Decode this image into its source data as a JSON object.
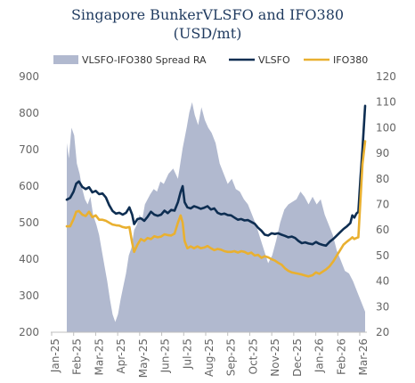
{
  "chart_data": {
    "type": "area+line",
    "title_line1": "Singapore BunkerVLSFO and IFO380",
    "title_line2": "(USD/mt)",
    "x_start": "2025-01-01",
    "x_end": "2026-03-20",
    "x_ticks": [
      "Jan-25",
      "Feb-25",
      "Mar-25",
      "Apr-25",
      "May-25",
      "Jun-25",
      "Jul-25",
      "Aug-25",
      "Sep-25",
      "Oct-25",
      "Nov-25",
      "Dec-25",
      "Jan-26",
      "Feb-26",
      "Mar-26"
    ],
    "y_left": {
      "ticks": [
        "200",
        "300",
        "400",
        "500",
        "600",
        "700",
        "800",
        "900"
      ],
      "lim": [
        200,
        900
      ]
    },
    "y_right": {
      "ticks": [
        "20",
        "30",
        "40",
        "50",
        "60",
        "70",
        "80",
        "90",
        "100",
        "110",
        "120"
      ],
      "lim": [
        20,
        120
      ]
    },
    "colors": {
      "spread": "#b1b9cf",
      "vlsfo": "#0e2e52",
      "ifo380": "#e9b030"
    },
    "series": [
      {
        "name": "VLSFO-IFO380 Spread RA",
        "axis": "right",
        "kind": "area",
        "points": [
          [
            "2025-01-01",
            94
          ],
          [
            "2025-01-04",
            88
          ],
          [
            "2025-01-08",
            100
          ],
          [
            "2025-01-12",
            97
          ],
          [
            "2025-01-16",
            86
          ],
          [
            "2025-01-20",
            82
          ],
          [
            "2025-01-24",
            76
          ],
          [
            "2025-01-28",
            72
          ],
          [
            "2025-02-01",
            70
          ],
          [
            "2025-02-05",
            73
          ],
          [
            "2025-02-09",
            66
          ],
          [
            "2025-02-14",
            62
          ],
          [
            "2025-02-18",
            58
          ],
          [
            "2025-02-22",
            52
          ],
          [
            "2025-02-26",
            46
          ],
          [
            "2025-03-02",
            40
          ],
          [
            "2025-03-06",
            33
          ],
          [
            "2025-03-10",
            27
          ],
          [
            "2025-03-14",
            24
          ],
          [
            "2025-03-18",
            27
          ],
          [
            "2025-03-22",
            33
          ],
          [
            "2025-03-26",
            38
          ],
          [
            "2025-03-30",
            43
          ],
          [
            "2025-04-03",
            50
          ],
          [
            "2025-04-07",
            53
          ],
          [
            "2025-04-11",
            60
          ],
          [
            "2025-04-15",
            62
          ],
          [
            "2025-04-19",
            66
          ],
          [
            "2025-04-23",
            64
          ],
          [
            "2025-04-27",
            70
          ],
          [
            "2025-05-01",
            72
          ],
          [
            "2025-05-05",
            74
          ],
          [
            "2025-05-10",
            76
          ],
          [
            "2025-05-15",
            75
          ],
          [
            "2025-05-20",
            79
          ],
          [
            "2025-05-25",
            78
          ],
          [
            "2025-06-01",
            82
          ],
          [
            "2025-06-08",
            84
          ],
          [
            "2025-06-15",
            80
          ],
          [
            "2025-06-22",
            92
          ],
          [
            "2025-06-28",
            100
          ],
          [
            "2025-07-02",
            106
          ],
          [
            "2025-07-06",
            110
          ],
          [
            "2025-07-10",
            105
          ],
          [
            "2025-07-15",
            101
          ],
          [
            "2025-07-20",
            108
          ],
          [
            "2025-07-25",
            103
          ],
          [
            "2025-07-30",
            100
          ],
          [
            "2025-08-04",
            98
          ],
          [
            "2025-08-10",
            94
          ],
          [
            "2025-08-16",
            86
          ],
          [
            "2025-08-22",
            82
          ],
          [
            "2025-08-28",
            78
          ],
          [
            "2025-09-03",
            80
          ],
          [
            "2025-09-09",
            76
          ],
          [
            "2025-09-15",
            75
          ],
          [
            "2025-09-21",
            72
          ],
          [
            "2025-09-27",
            70
          ],
          [
            "2025-10-03",
            66
          ],
          [
            "2025-10-09",
            62
          ],
          [
            "2025-10-15",
            57
          ],
          [
            "2025-10-21",
            52
          ],
          [
            "2025-10-27",
            47
          ],
          [
            "2025-11-02",
            50
          ],
          [
            "2025-11-08",
            56
          ],
          [
            "2025-11-14",
            63
          ],
          [
            "2025-11-20",
            68
          ],
          [
            "2025-11-26",
            70
          ],
          [
            "2025-12-02",
            71
          ],
          [
            "2025-12-08",
            72
          ],
          [
            "2025-12-14",
            75
          ],
          [
            "2025-12-20",
            73
          ],
          [
            "2025-12-26",
            70
          ],
          [
            "2026-01-01",
            73
          ],
          [
            "2026-01-07",
            70
          ],
          [
            "2026-01-13",
            72
          ],
          [
            "2026-01-19",
            66
          ],
          [
            "2026-01-25",
            62
          ],
          [
            "2026-01-31",
            58
          ],
          [
            "2026-02-06",
            52
          ],
          [
            "2026-02-12",
            48
          ],
          [
            "2026-02-18",
            44
          ],
          [
            "2026-02-24",
            43
          ],
          [
            "2026-03-02",
            40
          ],
          [
            "2026-03-08",
            36
          ],
          [
            "2026-03-14",
            32
          ],
          [
            "2026-03-20",
            28
          ]
        ]
      },
      {
        "name": "VLSFO",
        "axis": "left",
        "kind": "line",
        "points": [
          [
            "2025-01-01",
            563
          ],
          [
            "2025-01-06",
            568
          ],
          [
            "2025-01-11",
            585
          ],
          [
            "2025-01-15",
            607
          ],
          [
            "2025-01-19",
            613
          ],
          [
            "2025-01-24",
            598
          ],
          [
            "2025-01-29",
            592
          ],
          [
            "2025-02-03",
            597
          ],
          [
            "2025-02-08",
            583
          ],
          [
            "2025-02-13",
            587
          ],
          [
            "2025-02-18",
            578
          ],
          [
            "2025-02-23",
            580
          ],
          [
            "2025-02-28",
            569
          ],
          [
            "2025-03-05",
            548
          ],
          [
            "2025-03-10",
            532
          ],
          [
            "2025-03-15",
            525
          ],
          [
            "2025-03-20",
            527
          ],
          [
            "2025-03-25",
            522
          ],
          [
            "2025-03-30",
            527
          ],
          [
            "2025-04-04",
            542
          ],
          [
            "2025-04-08",
            522
          ],
          [
            "2025-04-11",
            496
          ],
          [
            "2025-04-16",
            510
          ],
          [
            "2025-04-21",
            512
          ],
          [
            "2025-04-26",
            505
          ],
          [
            "2025-05-01",
            516
          ],
          [
            "2025-05-06",
            530
          ],
          [
            "2025-05-11",
            522
          ],
          [
            "2025-05-16",
            519
          ],
          [
            "2025-05-21",
            522
          ],
          [
            "2025-05-26",
            533
          ],
          [
            "2025-05-31",
            526
          ],
          [
            "2025-06-05",
            535
          ],
          [
            "2025-06-10",
            533
          ],
          [
            "2025-06-15",
            556
          ],
          [
            "2025-06-19",
            584
          ],
          [
            "2025-06-22",
            600
          ],
          [
            "2025-06-25",
            556
          ],
          [
            "2025-06-29",
            542
          ],
          [
            "2025-07-04",
            539
          ],
          [
            "2025-07-09",
            545
          ],
          [
            "2025-07-14",
            542
          ],
          [
            "2025-07-19",
            538
          ],
          [
            "2025-07-24",
            541
          ],
          [
            "2025-07-29",
            545
          ],
          [
            "2025-08-03",
            536
          ],
          [
            "2025-08-08",
            539
          ],
          [
            "2025-08-13",
            527
          ],
          [
            "2025-08-18",
            523
          ],
          [
            "2025-08-23",
            525
          ],
          [
            "2025-08-28",
            521
          ],
          [
            "2025-09-02",
            520
          ],
          [
            "2025-09-07",
            514
          ],
          [
            "2025-09-12",
            508
          ],
          [
            "2025-09-17",
            510
          ],
          [
            "2025-09-22",
            506
          ],
          [
            "2025-09-27",
            507
          ],
          [
            "2025-10-02",
            502
          ],
          [
            "2025-10-07",
            497
          ],
          [
            "2025-10-12",
            486
          ],
          [
            "2025-10-17",
            478
          ],
          [
            "2025-10-22",
            467
          ],
          [
            "2025-10-27",
            465
          ],
          [
            "2025-11-01",
            471
          ],
          [
            "2025-11-06",
            469
          ],
          [
            "2025-11-11",
            471
          ],
          [
            "2025-11-16",
            467
          ],
          [
            "2025-11-21",
            464
          ],
          [
            "2025-11-26",
            460
          ],
          [
            "2025-12-01",
            462
          ],
          [
            "2025-12-06",
            458
          ],
          [
            "2025-12-11",
            450
          ],
          [
            "2025-12-16",
            444
          ],
          [
            "2025-12-21",
            446
          ],
          [
            "2025-12-26",
            443
          ],
          [
            "2026-01-01",
            441
          ],
          [
            "2026-01-06",
            447
          ],
          [
            "2026-01-11",
            442
          ],
          [
            "2026-01-16",
            439
          ],
          [
            "2026-01-21",
            437
          ],
          [
            "2026-01-26",
            447
          ],
          [
            "2026-02-01",
            456
          ],
          [
            "2026-02-06",
            465
          ],
          [
            "2026-02-11",
            474
          ],
          [
            "2026-02-16",
            483
          ],
          [
            "2026-02-21",
            490
          ],
          [
            "2026-02-26",
            499
          ],
          [
            "2026-03-01",
            520
          ],
          [
            "2026-03-04",
            514
          ],
          [
            "2026-03-07",
            525
          ],
          [
            "2026-03-10",
            530
          ],
          [
            "2026-03-13",
            620
          ],
          [
            "2026-03-16",
            700
          ],
          [
            "2026-03-20",
            820
          ]
        ]
      },
      {
        "name": "IFO380",
        "axis": "left",
        "kind": "line",
        "points": [
          [
            "2025-01-01",
            490
          ],
          [
            "2025-01-06",
            490
          ],
          [
            "2025-01-11",
            510
          ],
          [
            "2025-01-15",
            530
          ],
          [
            "2025-01-19",
            532
          ],
          [
            "2025-01-24",
            522
          ],
          [
            "2025-01-29",
            518
          ],
          [
            "2025-02-03",
            530
          ],
          [
            "2025-02-08",
            515
          ],
          [
            "2025-02-13",
            520
          ],
          [
            "2025-02-18",
            508
          ],
          [
            "2025-02-23",
            508
          ],
          [
            "2025-02-28",
            505
          ],
          [
            "2025-03-05",
            500
          ],
          [
            "2025-03-10",
            495
          ],
          [
            "2025-03-15",
            493
          ],
          [
            "2025-03-20",
            492
          ],
          [
            "2025-03-25",
            488
          ],
          [
            "2025-03-30",
            486
          ],
          [
            "2025-04-04",
            488
          ],
          [
            "2025-04-08",
            445
          ],
          [
            "2025-04-11",
            420
          ],
          [
            "2025-04-16",
            440
          ],
          [
            "2025-04-21",
            455
          ],
          [
            "2025-04-26",
            450
          ],
          [
            "2025-05-01",
            458
          ],
          [
            "2025-05-06",
            455
          ],
          [
            "2025-05-11",
            463
          ],
          [
            "2025-05-16",
            460
          ],
          [
            "2025-05-21",
            462
          ],
          [
            "2025-05-26",
            468
          ],
          [
            "2025-05-31",
            466
          ],
          [
            "2025-06-05",
            465
          ],
          [
            "2025-06-10",
            470
          ],
          [
            "2025-06-15",
            500
          ],
          [
            "2025-06-19",
            520
          ],
          [
            "2025-06-22",
            500
          ],
          [
            "2025-06-25",
            450
          ],
          [
            "2025-06-29",
            430
          ],
          [
            "2025-07-04",
            435
          ],
          [
            "2025-07-09",
            430
          ],
          [
            "2025-07-14",
            435
          ],
          [
            "2025-07-19",
            430
          ],
          [
            "2025-07-24",
            432
          ],
          [
            "2025-07-29",
            436
          ],
          [
            "2025-08-03",
            430
          ],
          [
            "2025-08-08",
            425
          ],
          [
            "2025-08-13",
            428
          ],
          [
            "2025-08-18",
            426
          ],
          [
            "2025-08-23",
            422
          ],
          [
            "2025-08-28",
            420
          ],
          [
            "2025-09-02",
            420
          ],
          [
            "2025-09-07",
            422
          ],
          [
            "2025-09-12",
            418
          ],
          [
            "2025-09-17",
            422
          ],
          [
            "2025-09-22",
            420
          ],
          [
            "2025-09-27",
            415
          ],
          [
            "2025-10-02",
            418
          ],
          [
            "2025-10-07",
            410
          ],
          [
            "2025-10-12",
            412
          ],
          [
            "2025-10-17",
            404
          ],
          [
            "2025-10-22",
            408
          ],
          [
            "2025-10-27",
            405
          ],
          [
            "2025-11-01",
            400
          ],
          [
            "2025-11-06",
            396
          ],
          [
            "2025-11-11",
            390
          ],
          [
            "2025-11-16",
            385
          ],
          [
            "2025-11-21",
            375
          ],
          [
            "2025-11-26",
            368
          ],
          [
            "2025-12-01",
            364
          ],
          [
            "2025-12-06",
            362
          ],
          [
            "2025-12-11",
            360
          ],
          [
            "2025-12-16",
            358
          ],
          [
            "2025-12-21",
            355
          ],
          [
            "2025-12-26",
            353
          ],
          [
            "2026-01-01",
            356
          ],
          [
            "2026-01-06",
            364
          ],
          [
            "2026-01-11",
            360
          ],
          [
            "2026-01-16",
            366
          ],
          [
            "2026-01-21",
            372
          ],
          [
            "2026-01-26",
            380
          ],
          [
            "2026-02-01",
            395
          ],
          [
            "2026-02-06",
            410
          ],
          [
            "2026-02-11",
            425
          ],
          [
            "2026-02-16",
            440
          ],
          [
            "2026-02-21",
            448
          ],
          [
            "2026-02-26",
            455
          ],
          [
            "2026-03-01",
            460
          ],
          [
            "2026-03-04",
            455
          ],
          [
            "2026-03-07",
            458
          ],
          [
            "2026-03-10",
            460
          ],
          [
            "2026-03-13",
            560
          ],
          [
            "2026-03-16",
            660
          ],
          [
            "2026-03-20",
            723
          ]
        ]
      }
    ],
    "legend": [
      "VLSFO-IFO380 Spread RA",
      "VLSFO",
      "IFO380"
    ]
  }
}
